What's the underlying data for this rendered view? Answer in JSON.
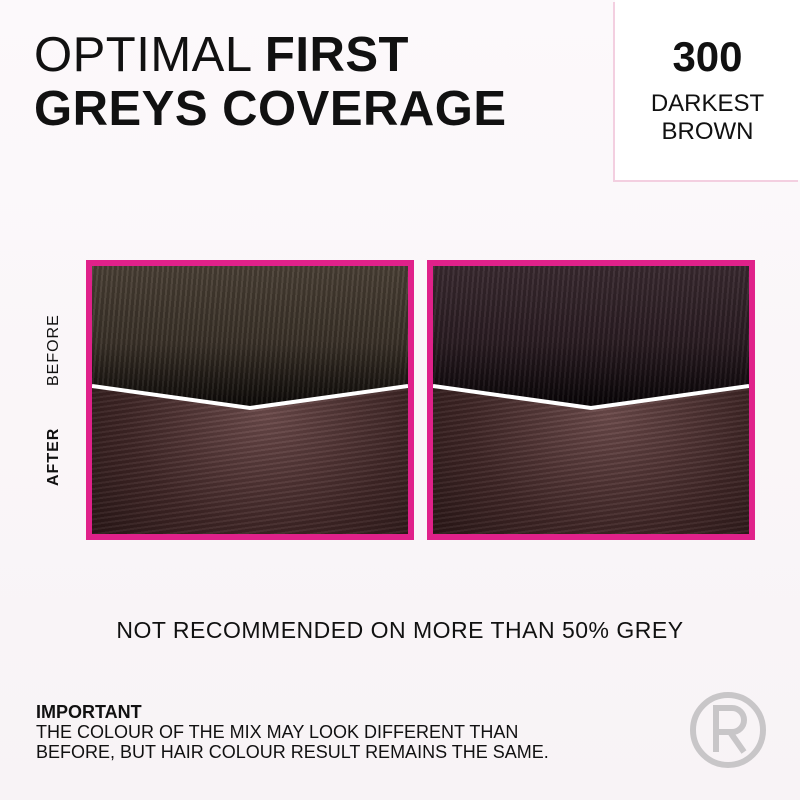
{
  "title": {
    "light": "OPTIMAL",
    "bold_1": "FIRST",
    "bold_2": "GREYS COVERAGE"
  },
  "shade": {
    "number": "300",
    "name_line1": "DARKEST",
    "name_line2": "BROWN"
  },
  "labels": {
    "before": "BEFORE",
    "after": "AFTER"
  },
  "colors": {
    "frame": "#e0218a",
    "background": "#faf6f8"
  },
  "notice": "NOT RECOMMENDED ON MORE THAN 50% GREY",
  "important": {
    "heading": "IMPORTANT",
    "line1": "THE COLOUR OF THE MIX MAY LOOK DIFFERENT THAN",
    "line2": "BEFORE, BUT HAIR COLOUR RESULT REMAINS THE SAME."
  },
  "logo": {
    "text": "R"
  }
}
